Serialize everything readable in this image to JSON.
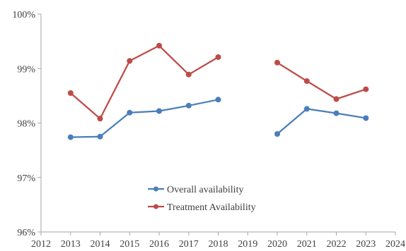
{
  "chart_data": {
    "type": "line",
    "title": "",
    "xlabel": "",
    "ylabel": "",
    "x_ticks": [
      "2012",
      "2013",
      "2014",
      "2015",
      "2016",
      "2017",
      "2018",
      "2019",
      "2020",
      "2021",
      "2022",
      "2023",
      "2024"
    ],
    "y_ticks": [
      "96%",
      "97%",
      "98%",
      "99%",
      "100%"
    ],
    "xlim": [
      2012,
      2024
    ],
    "ylim": [
      96,
      100
    ],
    "grid": false,
    "legend_position": "lower-center",
    "series": [
      {
        "name": "Overall availability",
        "color": "#4a7ebb",
        "x": [
          2013,
          2014,
          2015,
          2016,
          2017,
          2018,
          2020,
          2021,
          2022,
          2023
        ],
        "values": [
          97.74,
          97.75,
          98.19,
          98.22,
          98.32,
          98.43,
          97.8,
          98.26,
          98.18,
          98.09
        ]
      },
      {
        "name": "Treatment Availability",
        "color": "#be4b48",
        "x": [
          2013,
          2014,
          2015,
          2016,
          2017,
          2018,
          2020,
          2021,
          2022,
          2023
        ],
        "values": [
          98.55,
          98.08,
          99.14,
          99.42,
          98.89,
          99.21,
          99.11,
          98.77,
          98.44,
          98.62
        ]
      }
    ]
  }
}
